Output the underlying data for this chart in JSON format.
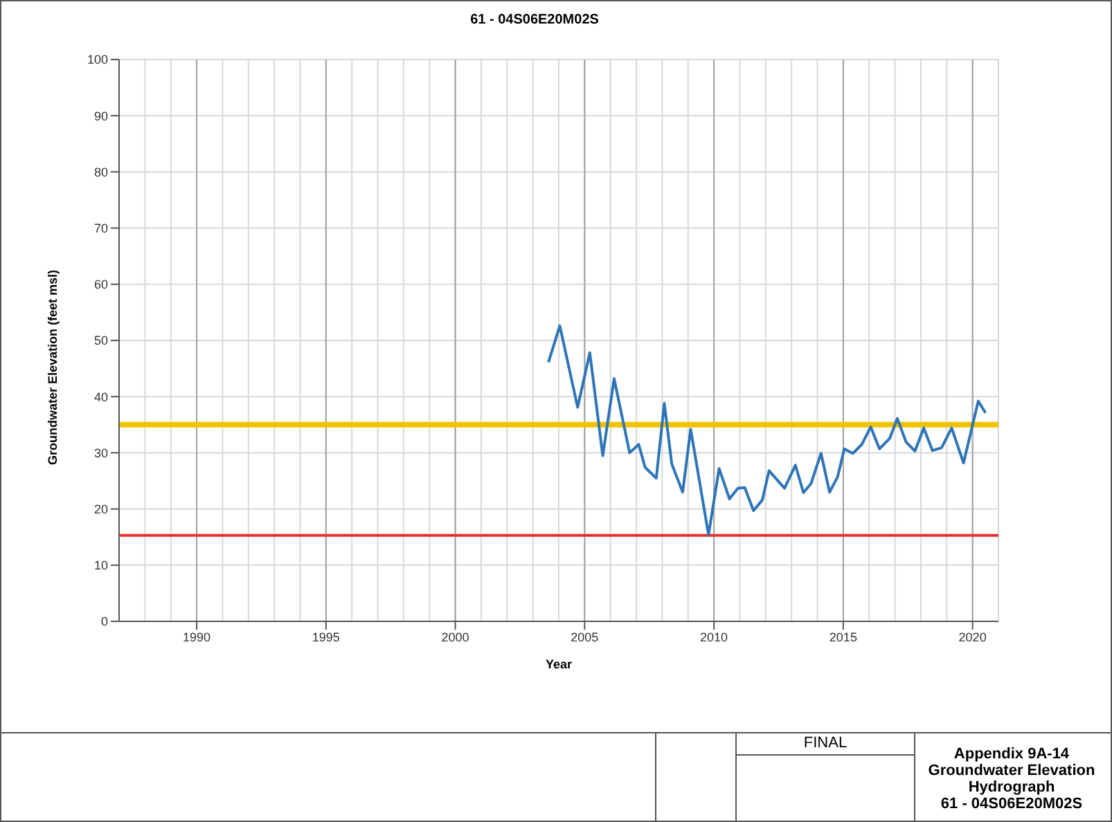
{
  "chart_data": {
    "type": "line",
    "title": "61 - 04S06E20M02S",
    "xlabel": "Year",
    "ylabel": "Groundwater Elevation (feet msl)",
    "x": [
      2003.6,
      2004.04,
      2004.73,
      2005.2,
      2005.7,
      2006.14,
      2006.74,
      2007.09,
      2007.34,
      2007.77,
      2008.08,
      2008.37,
      2008.79,
      2009.1,
      2009.79,
      2010.2,
      2010.6,
      2010.93,
      2011.19,
      2011.53,
      2011.87,
      2012.13,
      2012.73,
      2013.15,
      2013.46,
      2013.75,
      2014.14,
      2014.47,
      2014.78,
      2015.04,
      2015.37,
      2015.72,
      2016.06,
      2016.4,
      2016.8,
      2017.09,
      2017.43,
      2017.77,
      2018.11,
      2018.45,
      2018.8,
      2019.19,
      2019.65,
      2020.22,
      2020.5
    ],
    "series": [
      {
        "color": "#2e75b6",
        "values": [
          46.1,
          52.6,
          38.1,
          47.8,
          29.5,
          43.2,
          30.0,
          31.5,
          27.4,
          25.5,
          38.8,
          28.0,
          23.0,
          34.2,
          15.4,
          27.2,
          21.8,
          23.7,
          23.8,
          19.7,
          21.6,
          26.8,
          23.7,
          27.8,
          22.9,
          24.5,
          29.9,
          23.0,
          25.7,
          30.7,
          29.9,
          31.5,
          34.6,
          30.7,
          32.6,
          36.1,
          31.9,
          30.3,
          34.4,
          30.4,
          30.9,
          34.4,
          28.2,
          39.2,
          37.1
        ]
      }
    ],
    "xlim": [
      1987,
      2021
    ],
    "xticks": [
      1990,
      1995,
      2000,
      2005,
      2010,
      2015,
      2020
    ],
    "ylim": [
      0,
      100
    ],
    "yticks": [
      0,
      10,
      20,
      30,
      40,
      50,
      60,
      70,
      80,
      90,
      100
    ],
    "grid": true,
    "marker": "none",
    "line_style": "solid",
    "ref_lines": [
      {
        "axis": "y",
        "value": 35,
        "color": "#f2c200"
      },
      {
        "axis": "y",
        "value": 15.3,
        "color": "#e8302a"
      }
    ],
    "annotations": [
      "FINAL",
      "Appendix 9A-14\nGroundwater Elevation\nHydrograph\n61 - 04S06E20M02S"
    ]
  }
}
